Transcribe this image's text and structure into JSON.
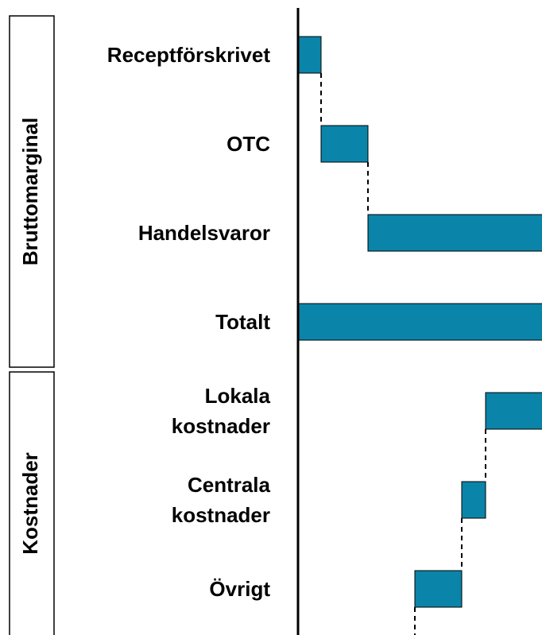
{
  "chart_data": {
    "type": "waterfall",
    "color": "#0a84a8",
    "xlim": [
      0,
      307
    ],
    "groups": [
      {
        "name": "Bruttomarginal",
        "categories": [
          "Receptförskrivet",
          "OTC",
          "Handelsvaror",
          "Totalt"
        ],
        "values": [
          29,
          59,
          330,
          418
        ],
        "is_total": [
          false,
          false,
          false,
          true
        ]
      },
      {
        "name": "Kostnader",
        "categories": [
          "Lokala\nkostnader",
          "Centrala\nkostnader",
          "Övrigt"
        ],
        "values": [
          -182,
          -30,
          -59
        ],
        "is_total": [
          false,
          false,
          false
        ]
      }
    ]
  }
}
